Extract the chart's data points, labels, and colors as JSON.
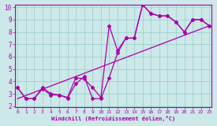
{
  "bg_color": "#cce8e8",
  "grid_color": "#99cccc",
  "line_color": "#aa00aa",
  "xlim_min": 0,
  "xlim_max": 23,
  "ylim_min": 2,
  "ylim_max": 10,
  "xticks": [
    0,
    1,
    2,
    3,
    4,
    5,
    6,
    7,
    8,
    9,
    10,
    11,
    12,
    13,
    14,
    15,
    16,
    17,
    18,
    19,
    20,
    21,
    22,
    23
  ],
  "yticks": [
    2,
    3,
    4,
    5,
    6,
    7,
    8,
    9,
    10
  ],
  "xlabel": "Windchill (Refroidissement éolien,°C)",
  "line1_x": [
    0,
    1,
    2,
    3,
    4,
    5,
    6,
    7,
    8,
    9,
    10,
    11,
    12,
    13,
    14,
    15,
    16,
    17,
    18,
    19,
    20,
    21,
    22,
    23
  ],
  "line1_y": [
    3.5,
    2.6,
    2.6,
    3.5,
    3.0,
    2.9,
    2.7,
    4.3,
    4.2,
    3.5,
    2.7,
    8.5,
    6.5,
    7.5,
    7.5,
    10.2,
    9.5,
    9.3,
    9.3,
    8.8,
    8.0,
    9.0,
    9.0,
    8.5
  ],
  "line2_x": [
    0,
    1,
    2,
    3,
    4,
    5,
    6,
    7,
    8,
    9,
    10,
    11,
    12,
    13,
    14,
    15,
    16,
    17,
    18,
    19,
    20,
    21,
    22,
    23
  ],
  "line2_y": [
    3.5,
    2.6,
    2.6,
    3.4,
    2.9,
    2.9,
    2.65,
    3.8,
    4.4,
    2.6,
    2.6,
    4.3,
    6.3,
    7.5,
    7.5,
    10.2,
    9.5,
    9.3,
    9.3,
    8.8,
    8.0,
    9.0,
    9.0,
    8.5
  ],
  "line3_x": [
    0,
    23
  ],
  "line3_y": [
    2.6,
    8.5
  ]
}
